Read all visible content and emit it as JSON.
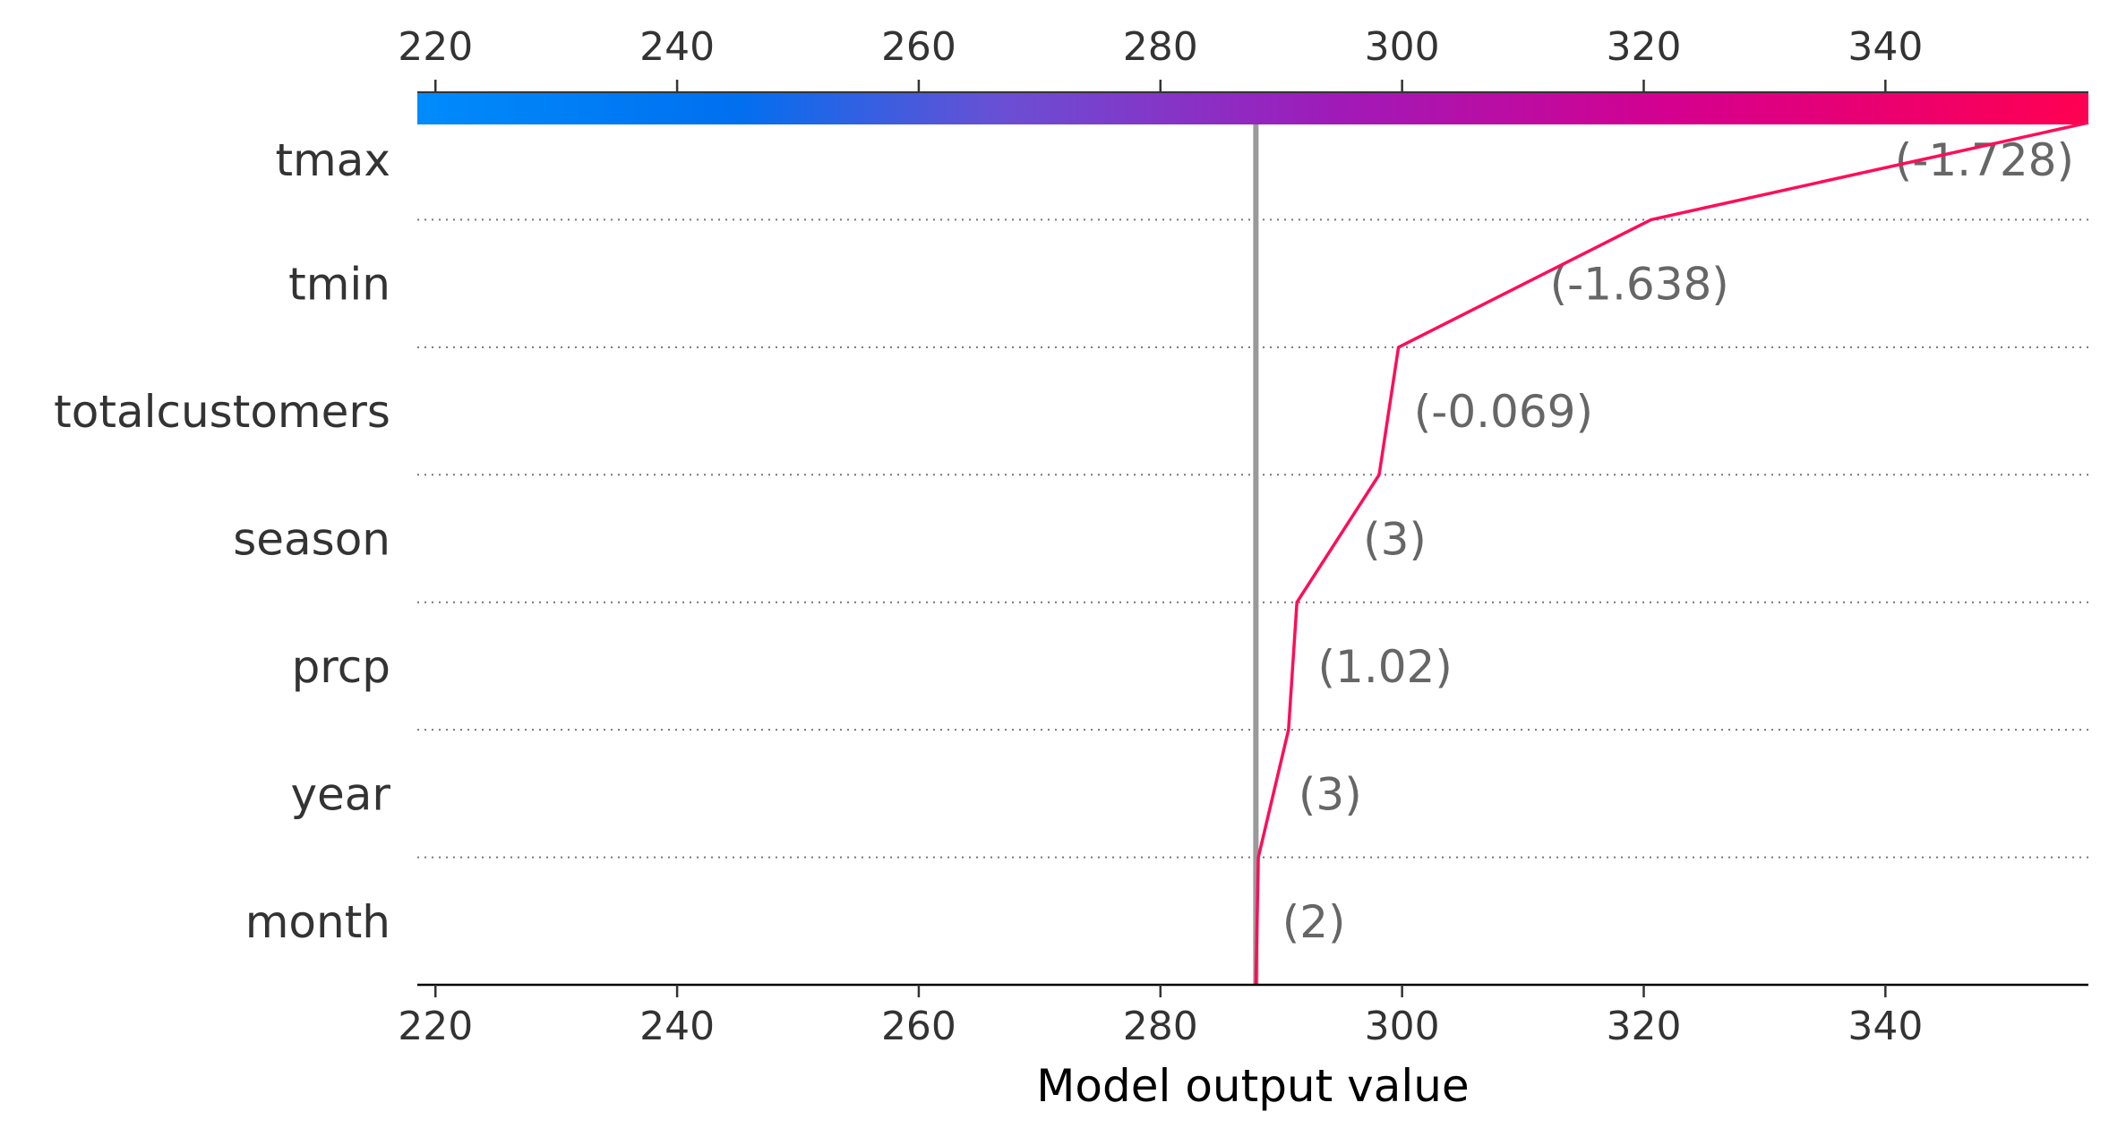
{
  "chart_data": {
    "type": "line",
    "xlabel": "Model output value",
    "xlim": [
      218.5,
      356.8
    ],
    "xticks": [
      220,
      240,
      260,
      280,
      300,
      320,
      340
    ],
    "base_value": 287.9,
    "colors": {
      "line": "#ff0d57",
      "base_line": "#999999",
      "colorbar_low": "#008bfb",
      "colorbar_mid": "#9a1fbd",
      "colorbar_high": "#ff0051"
    },
    "features": [
      {
        "name": "tmax",
        "value": "(-1.728)",
        "cum_output": 356.8
      },
      {
        "name": "tmin",
        "value": "(-1.638)",
        "cum_output": 320.6
      },
      {
        "name": "totalcustomers",
        "value": "(-0.069)",
        "cum_output": 299.7
      },
      {
        "name": "season",
        "value": "(3)",
        "cum_output": 298.1
      },
      {
        "name": "prcp",
        "value": "(1.02)",
        "cum_output": 291.3
      },
      {
        "name": "year",
        "value": "(3)",
        "cum_output": 290.6
      },
      {
        "name": "month",
        "value": "(2)",
        "cum_output": 288.1
      }
    ],
    "start_output": 287.9
  }
}
